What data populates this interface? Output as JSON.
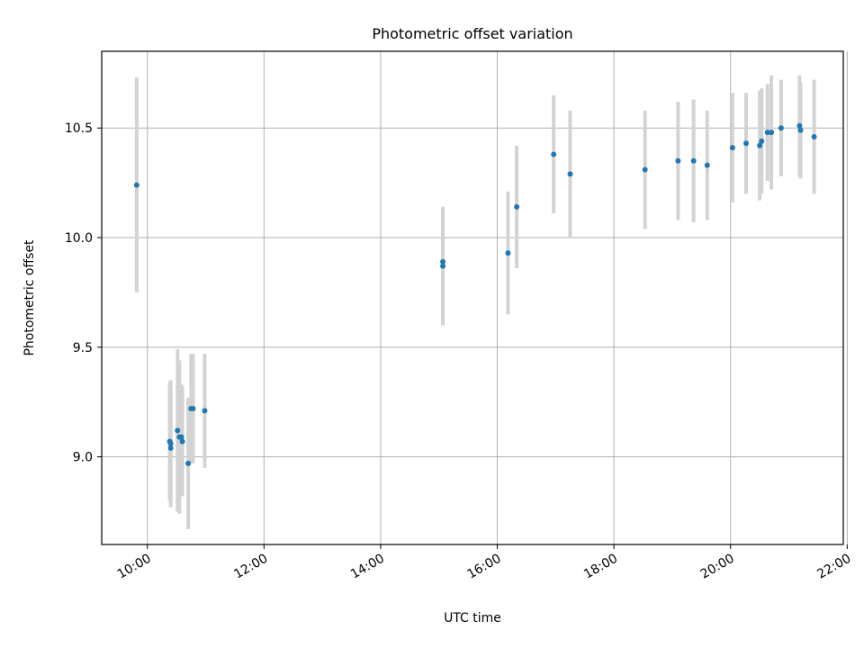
{
  "chart_data": {
    "type": "scatter",
    "title": "Photometric offset variation",
    "xlabel": "UTC time",
    "ylabel": "Photometric offset",
    "x_is_time": true,
    "xlim": [
      "09:13",
      "21:56"
    ],
    "ylim": [
      8.6,
      10.85
    ],
    "x_ticks": [
      "10:00",
      "12:00",
      "14:00",
      "16:00",
      "18:00",
      "20:00",
      "22:00"
    ],
    "y_ticks": [
      9.0,
      9.5,
      10.0,
      10.5
    ],
    "y_tick_labels": [
      "9.0",
      "9.5",
      "10.0",
      "10.5"
    ],
    "grid": true,
    "colors": {
      "points": "#1f77b4",
      "errorbars": "#d3d3d3",
      "grid": "#b0b0b0",
      "axes": "#000000"
    },
    "points": [
      {
        "x": "09:49",
        "y": 10.24,
        "yerr": 0.49
      },
      {
        "x": "10:23",
        "y": 9.07,
        "yerr": 0.27
      },
      {
        "x": "10:24",
        "y": 9.06,
        "yerr": 0.29
      },
      {
        "x": "10:24",
        "y": 9.04,
        "yerr": 0.25
      },
      {
        "x": "10:31",
        "y": 9.12,
        "yerr": 0.37
      },
      {
        "x": "10:33",
        "y": 9.09,
        "yerr": 0.35
      },
      {
        "x": "10:35",
        "y": 9.09,
        "yerr": 0.24
      },
      {
        "x": "10:36",
        "y": 9.07,
        "yerr": 0.25
      },
      {
        "x": "10:42",
        "y": 8.97,
        "yerr": 0.3
      },
      {
        "x": "10:45",
        "y": 9.22,
        "yerr": 0.25
      },
      {
        "x": "10:47",
        "y": 9.22,
        "yerr": 0.25
      },
      {
        "x": "10:59",
        "y": 9.21,
        "yerr": 0.26
      },
      {
        "x": "15:04",
        "y": 9.89,
        "yerr": 0.25
      },
      {
        "x": "15:04",
        "y": 9.87,
        "yerr": 0.27
      },
      {
        "x": "16:11",
        "y": 9.93,
        "yerr": 0.28
      },
      {
        "x": "16:20",
        "y": 10.14,
        "yerr": 0.28
      },
      {
        "x": "16:58",
        "y": 10.38,
        "yerr": 0.27
      },
      {
        "x": "17:15",
        "y": 10.29,
        "yerr": 0.29
      },
      {
        "x": "18:32",
        "y": 10.31,
        "yerr": 0.27
      },
      {
        "x": "19:06",
        "y": 10.35,
        "yerr": 0.27
      },
      {
        "x": "19:22",
        "y": 10.35,
        "yerr": 0.28
      },
      {
        "x": "19:36",
        "y": 10.33,
        "yerr": 0.25
      },
      {
        "x": "20:02",
        "y": 10.41,
        "yerr": 0.25
      },
      {
        "x": "20:16",
        "y": 10.43,
        "yerr": 0.23
      },
      {
        "x": "20:30",
        "y": 10.42,
        "yerr": 0.25
      },
      {
        "x": "20:32",
        "y": 10.44,
        "yerr": 0.24
      },
      {
        "x": "20:38",
        "y": 10.48,
        "yerr": 0.22
      },
      {
        "x": "20:42",
        "y": 10.48,
        "yerr": 0.26
      },
      {
        "x": "20:52",
        "y": 10.5,
        "yerr": 0.22
      },
      {
        "x": "21:11",
        "y": 10.51,
        "yerr": 0.23
      },
      {
        "x": "21:12",
        "y": 10.49,
        "yerr": 0.22
      },
      {
        "x": "21:26",
        "y": 10.46,
        "yerr": 0.26
      }
    ]
  }
}
